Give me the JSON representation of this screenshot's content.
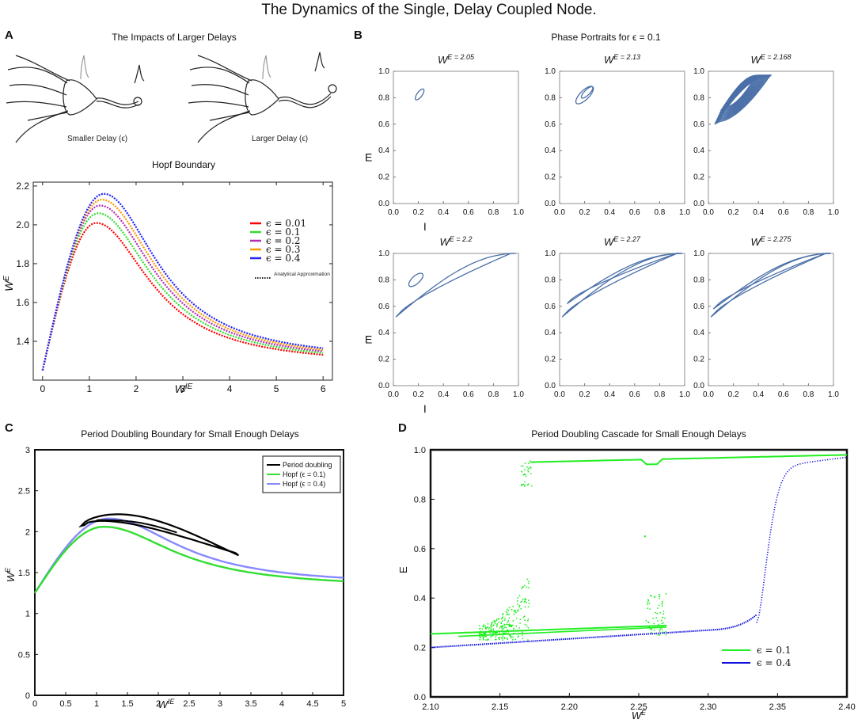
{
  "figure": {
    "title": "The Dynamics of the Single, Delay Coupled Node."
  },
  "panelA": {
    "letter": "A",
    "top_title": "The Impacts of Larger Delays",
    "neuron_small_label": "Smaller Delay (ϵ)",
    "neuron_large_label": "Larger Delay (ϵ)"
  },
  "panelB": {
    "letter": "B",
    "title": "Phase Portraits for ϵ = 0.1"
  },
  "panelC": {
    "letter": "C"
  },
  "panelD": {
    "letter": "D"
  },
  "chart_data": [
    {
      "id": "hopf",
      "type": "line",
      "title": "Hopf Boundary",
      "xlabel": "W^IE",
      "ylabel": "W^E",
      "xlim": [
        -0.2,
        6.2
      ],
      "ylim": [
        1.2,
        2.22
      ],
      "xticks": [
        "0",
        "1",
        "2",
        "3",
        "4",
        "5",
        "6"
      ],
      "yticks": [
        "1.4",
        "1.6",
        "1.8",
        "2.0",
        "2.2"
      ],
      "series": [
        {
          "name": "ϵ = 0.01",
          "color": "#ff0000",
          "peak": 2.01
        },
        {
          "name": "ϵ = 0.1",
          "color": "#33dd33",
          "peak": 2.06
        },
        {
          "name": "ϵ = 0.2",
          "color": "#b030b0",
          "peak": 2.1
        },
        {
          "name": "ϵ = 0.3",
          "color": "#ff9900",
          "peak": 2.13
        },
        {
          "name": "ϵ = 0.4",
          "color": "#2222ff",
          "peak": 2.16
        }
      ],
      "legend_extra": "Analytical Approximation",
      "legend_position": "right"
    },
    {
      "id": "phase",
      "type": "line",
      "xlabel": "I",
      "ylabel": "E",
      "xlim": [
        0,
        1
      ],
      "ylim": [
        0,
        1
      ],
      "ticks": [
        "0.0",
        "0.2",
        "0.4",
        "0.6",
        "0.8",
        "1.0"
      ],
      "portraits": [
        {
          "title": "W^E = 2.05"
        },
        {
          "title": "W^E = 2.13"
        },
        {
          "title": "W^E = 2.168"
        },
        {
          "title": "W^E = 2.2"
        },
        {
          "title": "W^E = 2.27"
        },
        {
          "title": "W^E = 2.275"
        }
      ]
    },
    {
      "id": "pd",
      "type": "line",
      "title": "Period Doubling Boundary for Small Enough Delays",
      "xlabel": "W^IE",
      "ylabel": "W^E",
      "xlim": [
        0,
        5
      ],
      "ylim": [
        0,
        3
      ],
      "xticks": [
        "0",
        "0.5",
        "1",
        "1.5",
        "2",
        "2.5",
        "3",
        "3.5",
        "4",
        "4.5",
        "5"
      ],
      "yticks": [
        "0",
        "0.5",
        "1",
        "1.5",
        "2",
        "2.5",
        "3"
      ],
      "series": [
        {
          "name": "Period doubling",
          "color": "#000000"
        },
        {
          "name": "Hopf (ϵ = 0.1)",
          "color": "#33dd33"
        },
        {
          "name": "Hopf (ϵ = 0.4)",
          "color": "#8888ff"
        }
      ],
      "legend_position": "top-right"
    },
    {
      "id": "cascade",
      "type": "scatter",
      "title": "Period Doubling Cascade for Small Enough Delays",
      "xlabel": "W^E",
      "ylabel": "E",
      "xlim": [
        2.1,
        2.4
      ],
      "ylim": [
        0,
        1
      ],
      "xticks": [
        "2.10",
        "2.15",
        "2.20",
        "2.25",
        "2.30",
        "2.35",
        "2.40"
      ],
      "yticks": [
        "0.0",
        "0.2",
        "0.4",
        "0.6",
        "0.8",
        "1.0"
      ],
      "series": [
        {
          "name": "ϵ = 0.1",
          "color": "#22ee22"
        },
        {
          "name": "ϵ = 0.4",
          "color": "#1111dd"
        }
      ],
      "legend_position": "bottom-right"
    }
  ]
}
